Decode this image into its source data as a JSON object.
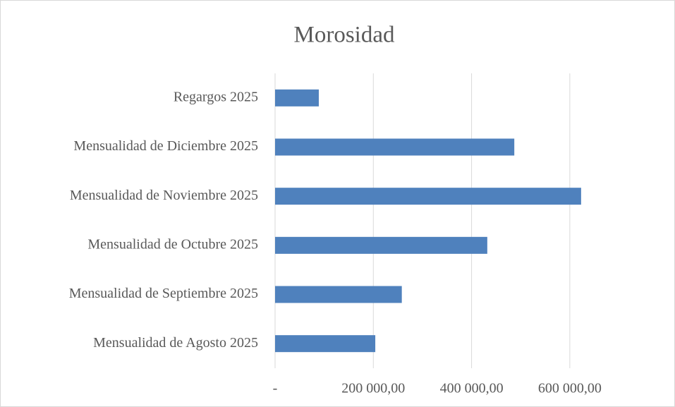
{
  "chart_data": {
    "type": "barh",
    "title": "Morosidad",
    "categories": [
      "Mensualidad de Agosto 2025",
      "Mensualidad de Septiembre 2025",
      "Mensualidad de Octubre 2025",
      "Mensualidad de Noviembre 2025",
      "Mensualidad de Diciembre 2025",
      "Regargos 2025"
    ],
    "values": [
      204000,
      258000,
      432000,
      623000,
      487000,
      89000
    ],
    "color": "#4f81bd",
    "xlim": [
      0,
      700000
    ],
    "xticks": [
      {
        "value": 0,
        "label": "-"
      },
      {
        "value": 200000,
        "label": "200 000,00"
      },
      {
        "value": 400000,
        "label": "400 000,00"
      },
      {
        "value": 600000,
        "label": "600 000,00"
      }
    ],
    "grid": true
  }
}
